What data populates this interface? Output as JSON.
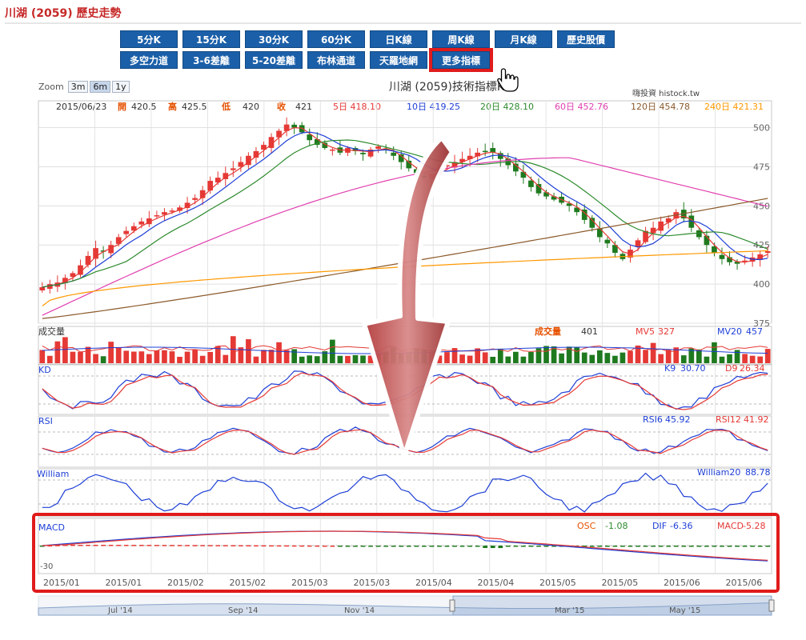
{
  "page": {
    "title": "川湖 (2059) 歷史走勢"
  },
  "buttons": {
    "row1": [
      "5分K",
      "15分K",
      "30分K",
      "60分K",
      "日K線",
      "周K線",
      "月K線",
      "歷史股價"
    ],
    "row2": [
      "多空力道",
      "3-6差離",
      "5-20差離",
      "布林通道",
      "天羅地網",
      "更多指標"
    ]
  },
  "zoom": {
    "label": "Zoom",
    "options": [
      "3m",
      "6m",
      "1y"
    ],
    "active": "6m"
  },
  "chart_header": {
    "title": "川湖 (2059)技術指標K線",
    "source": "嗨投資 histock.tw",
    "date": "2015/06/23",
    "open_label": "開",
    "open_value": "420.5",
    "high_label": "高",
    "high_value": "425.5",
    "low_label": "低",
    "low_value": "420",
    "close_label": "收",
    "close_value": "421",
    "ma_labels": [
      {
        "label": "5日",
        "value": "418.10",
        "color": "#e53935"
      },
      {
        "label": "10日",
        "value": "419.25",
        "color": "#1e3fd6"
      },
      {
        "label": "20日",
        "value": "428.10",
        "color": "#2e8b2e"
      },
      {
        "label": "60日",
        "value": "452.76",
        "color": "#e040b0"
      },
      {
        "label": "120日",
        "value": "454.78",
        "color": "#8b5a2b"
      },
      {
        "label": "240日",
        "value": "421.31",
        "color": "#ff9800"
      }
    ]
  },
  "volume_panel": {
    "name": "成交量",
    "label": "成交量",
    "value": "401",
    "mv5_label": "MV5",
    "mv5_value": "327",
    "mv20_label": "MV20",
    "mv20_value": "457"
  },
  "kd_panel": {
    "name": "KD",
    "k_label": "K9",
    "k_value": "30.70",
    "d_label": "D9",
    "d_value": "26.34"
  },
  "rsi_panel": {
    "name": "RSI",
    "rsi6_label": "RSI6",
    "rsi6_value": "45.92",
    "rsi12_label": "RSI12",
    "rsi12_value": "41.92"
  },
  "william_panel": {
    "name": "William",
    "label": "William20",
    "value": "88.78"
  },
  "macd_panel": {
    "name": "MACD",
    "osc_label": "OSC",
    "osc_value": "-1.08",
    "dif_label": "DIF",
    "dif_value": "-6.36",
    "macd_label": "MACD",
    "macd_value": "-5.28",
    "min_label": "-30"
  },
  "x_axis_dates": [
    "2015/01",
    "2015/01",
    "2015/02",
    "2015/02",
    "2015/03",
    "2015/03",
    "2015/04",
    "2015/04",
    "2015/05",
    "2015/05",
    "2015/06",
    "2015/06"
  ],
  "navigator_labels": [
    "Jul '14",
    "Sep '14",
    "Nov '14",
    "Mar '15",
    "May '15"
  ],
  "colors": {
    "up": "#e53935",
    "down": "#1f7a1f",
    "highlight": "#e01b1b",
    "accent": "#1b5fa8"
  },
  "chart_data": {
    "type": "candlestick",
    "title": "川湖 (2059)技術指標K線",
    "ylim": [
      375,
      510
    ],
    "y_ticks": [
      375,
      400,
      425,
      450,
      475,
      500
    ],
    "x": [
      "2015/01",
      "2015/01",
      "2015/02",
      "2015/02",
      "2015/03",
      "2015/03",
      "2015/04",
      "2015/04",
      "2015/05",
      "2015/05",
      "2015/06",
      "2015/06"
    ],
    "last_bar": {
      "date": "2015/06/23",
      "open": 420.5,
      "high": 425.5,
      "low": 420,
      "close": 421
    },
    "close_series": [
      398,
      400,
      401,
      404,
      407,
      412,
      418,
      423,
      421,
      425,
      430,
      434,
      437,
      440,
      442,
      444,
      446,
      447,
      449,
      452,
      455,
      460,
      466,
      468,
      471,
      474,
      478,
      482,
      485,
      489,
      494,
      498,
      502,
      500,
      497,
      492,
      489,
      487,
      486,
      484,
      487,
      485,
      483,
      486,
      488,
      486,
      482,
      478,
      474,
      471,
      468,
      470,
      474,
      476,
      478,
      480,
      482,
      484,
      485,
      484,
      480,
      476,
      472,
      468,
      462,
      458,
      456,
      454,
      452,
      450,
      446,
      441,
      436,
      430,
      426,
      420,
      416,
      422,
      428,
      434,
      436,
      440,
      442,
      446,
      442,
      436,
      430,
      425,
      420,
      416,
      414,
      413,
      415,
      417,
      419,
      421
    ],
    "series": [
      {
        "name": "5日",
        "value": 418.1,
        "color": "#e53935"
      },
      {
        "name": "10日",
        "value": 419.25,
        "color": "#1e3fd6"
      },
      {
        "name": "20日",
        "value": 428.1,
        "color": "#2e8b2e"
      },
      {
        "name": "60日",
        "value": 452.76,
        "color": "#e040b0"
      },
      {
        "name": "120日",
        "value": 454.78,
        "color": "#8b5a2b"
      },
      {
        "name": "240日",
        "value": 421.31,
        "color": "#ff9800"
      }
    ],
    "indicators": {
      "volume": {
        "last": 401,
        "MV5": 327,
        "MV20": 457
      },
      "KD": {
        "K9": 30.7,
        "D9": 26.34
      },
      "RSI": {
        "RSI6": 45.92,
        "RSI12": 41.92
      },
      "William": {
        "William20": 88.78
      },
      "MACD": {
        "OSC": -1.08,
        "DIF": -6.36,
        "MACD": -5.28
      }
    },
    "grid": true
  }
}
